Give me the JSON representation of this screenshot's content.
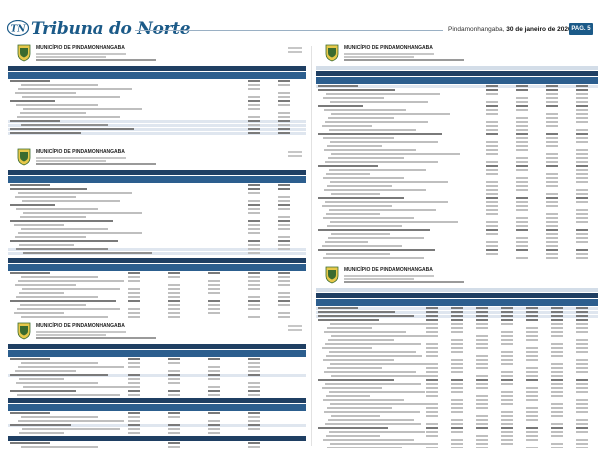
{
  "masthead": {
    "logo_initials": "TN",
    "publication": "Tribuna do Norte",
    "city": "Pindamonhangaba,",
    "date": "30 de janeiro de 2026",
    "page_label": "PAG. 5"
  },
  "reports": {
    "municipality": "MUNICÍPIO DE PINDAMONHANGABA"
  },
  "colors": {
    "brand_blue": "#1b5a88",
    "table_header": "#1f3f63",
    "table_subheader": "#2c5e8e"
  },
  "icons": {
    "logo": "tribuna-logo-icon",
    "crest": "municipal-crest-icon"
  }
}
